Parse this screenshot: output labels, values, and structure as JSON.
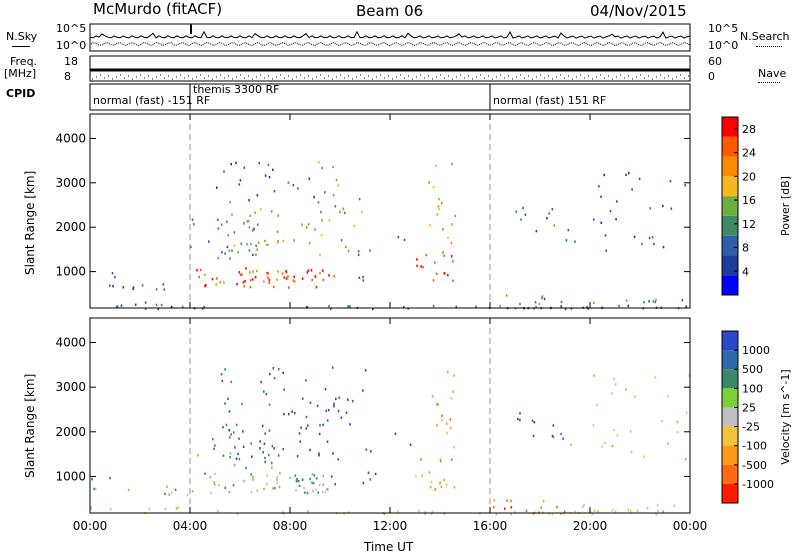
{
  "header": {
    "station": "McMurdo (fitACF)",
    "beam": "Beam 06",
    "date": "04/Nov/2015"
  },
  "top_panels": {
    "nsky_label": "N.Sky",
    "nsearch_label": "N.Search",
    "noise_ticks_left": [
      "10^5",
      "10^0"
    ],
    "noise_ticks_right": [
      "10^5",
      "10^0"
    ],
    "freq_label_1": "Freq.",
    "freq_label_2": "[MHz]",
    "freq_ticks": [
      "18",
      "8"
    ],
    "nave_label": "Nave",
    "nave_ticks": [
      "60",
      "0"
    ],
    "cpid_label": "CPID"
  },
  "cpid_segments": [
    {
      "label": "normal (fast) -151 RF",
      "start_h": 0,
      "end_h": 4
    },
    {
      "label": "themis 3300 RF",
      "start_h": 4,
      "end_h": 16
    },
    {
      "label": "normal (fast) 151 RF",
      "start_h": 16,
      "end_h": 24
    }
  ],
  "chart_data": [
    {
      "type": "heatmap",
      "title": "Power",
      "ylabel": "Slant Range [km]",
      "xlabel": "Time UT",
      "x_ticks": [
        "00:00",
        "04:00",
        "08:00",
        "12:00",
        "16:00",
        "20:00",
        "00:00"
      ],
      "xlim_hours": [
        0,
        24
      ],
      "y_ticks": [
        1000,
        2000,
        3000,
        4000
      ],
      "ylim": [
        180,
        4550
      ],
      "colorbar": {
        "label": "Power [dB]",
        "ticks": [
          "4",
          "8",
          "12",
          "16",
          "20",
          "24",
          "28"
        ],
        "range": [
          0,
          30
        ],
        "colors": [
          "#0000ff",
          "#1e3c9a",
          "#2e5ea8",
          "#3e8a62",
          "#6fae3e",
          "#f5b81e",
          "#ff8a00",
          "#ff5a00",
          "#ff0000"
        ]
      }
    },
    {
      "type": "heatmap",
      "title": "Velocity",
      "ylabel": "Slant Range [km]",
      "xlabel": "Time UT",
      "x_ticks": [
        "00:00",
        "04:00",
        "08:00",
        "12:00",
        "16:00",
        "20:00",
        "00:00"
      ],
      "xlim_hours": [
        0,
        24
      ],
      "y_ticks": [
        1000,
        2000,
        3000,
        4000
      ],
      "ylim": [
        180,
        4550
      ],
      "colorbar": {
        "label": "Velocity [m s^-1]",
        "ticks": [
          "1000",
          "500",
          "100",
          "25",
          "-25",
          "-100",
          "-500",
          "-1000"
        ],
        "colors": [
          "#2a48c8",
          "#2e6aa8",
          "#3a8a6a",
          "#7ccf3a",
          "#c0c0c0",
          "#f5c23a",
          "#ff9a1a",
          "#ff6a10",
          "#ff1a00"
        ]
      }
    }
  ],
  "colors": {
    "grid_dashed": "#999999",
    "frame": "#000000"
  }
}
